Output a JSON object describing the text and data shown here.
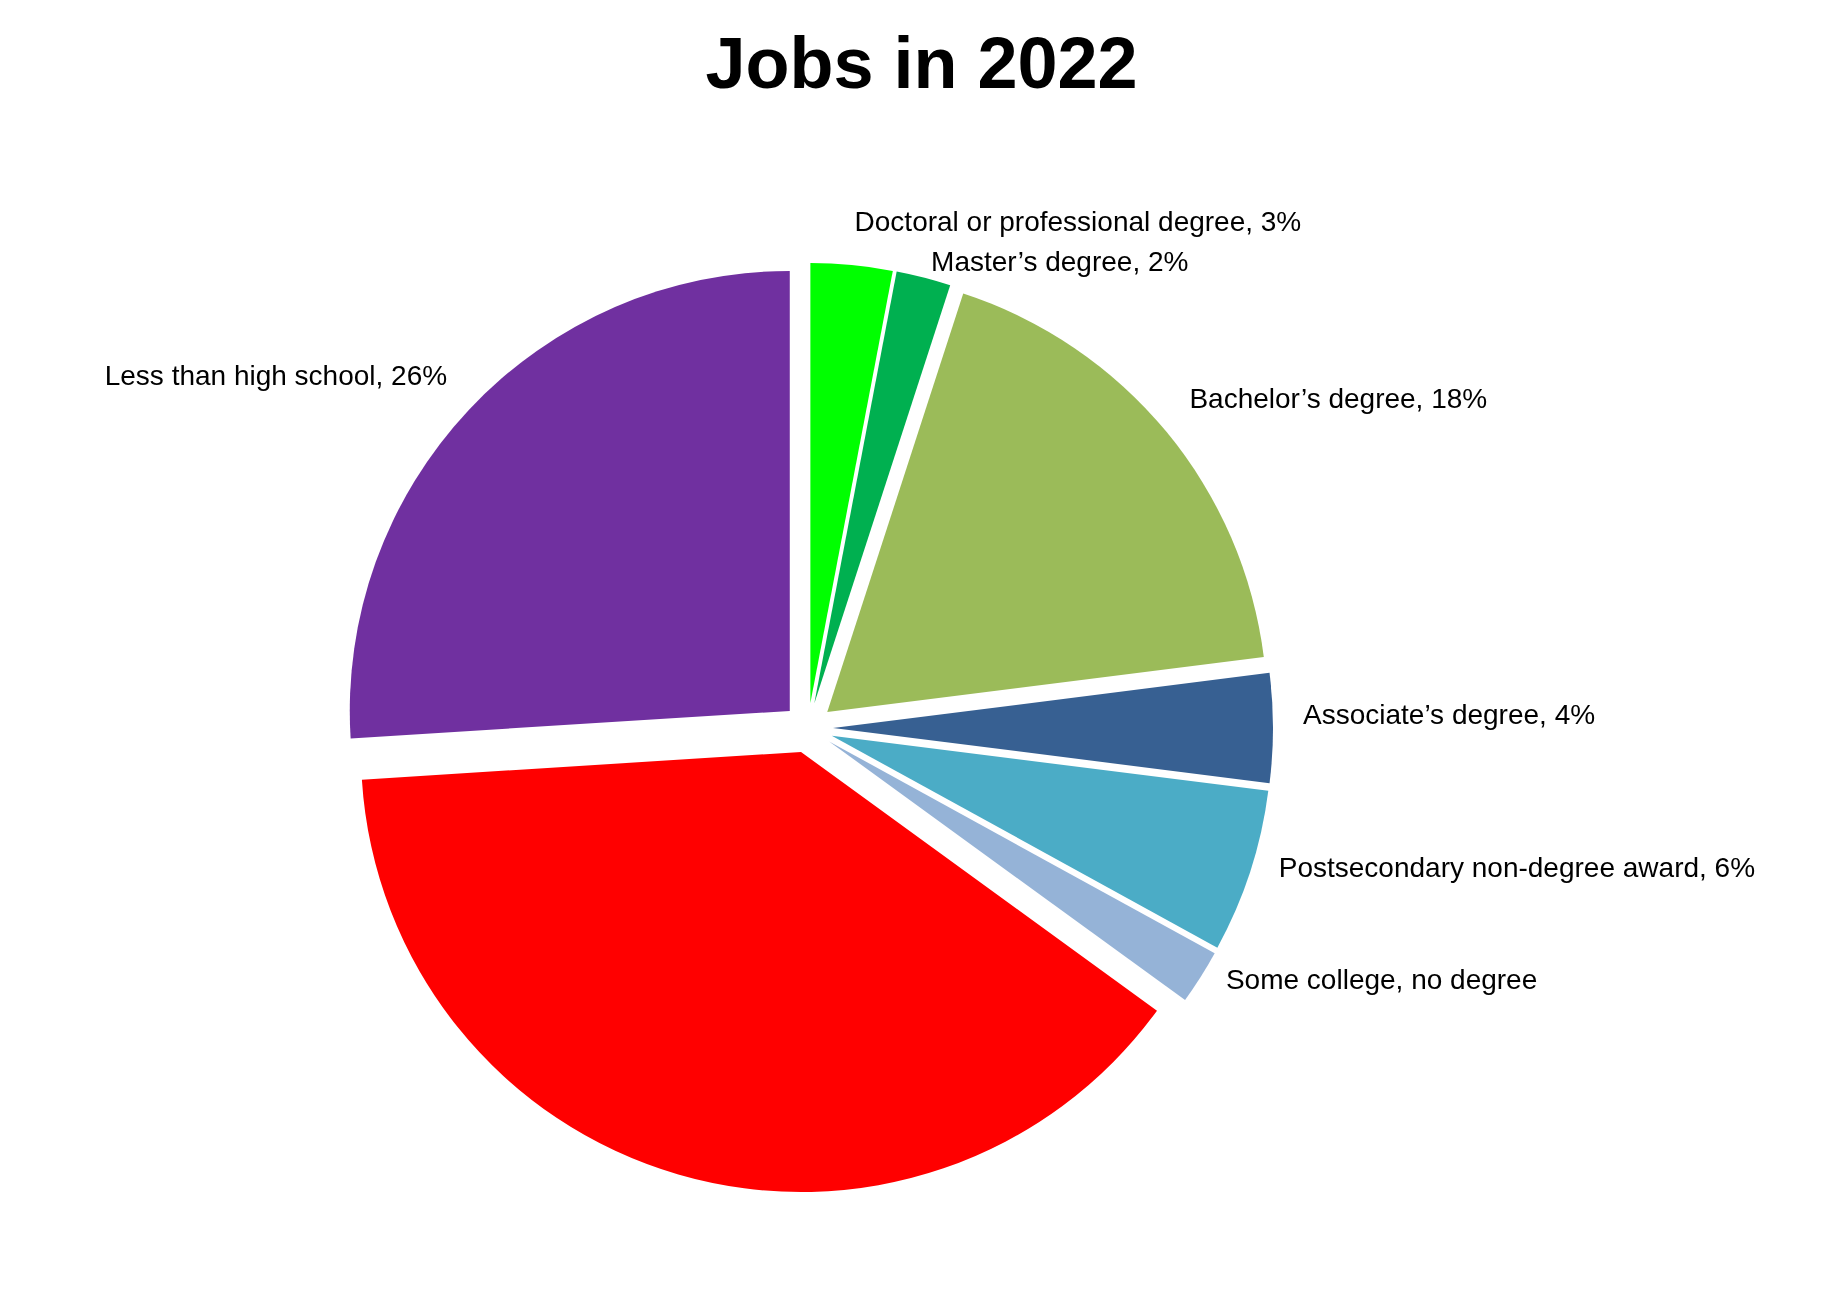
{
  "chart_data": {
    "type": "pie",
    "title": "Jobs in 2022",
    "categories": [
      "Doctoral or professional degree",
      "Master’s degree",
      "Bachelor’s degree",
      "Associate’s degree",
      "Postsecondary non-degree award",
      "Some college, no degree",
      null,
      "Less than high school"
    ],
    "values": [
      3,
      2,
      18,
      4,
      6,
      2,
      39,
      26
    ],
    "value_labels": [
      "3%",
      "2%",
      "18%",
      "4%",
      "6%",
      null,
      null,
      "26%"
    ],
    "colors": [
      "#00ff00",
      "#00b050",
      "#9bbb59",
      "#376092",
      "#4bacc6",
      "#95b3d7",
      "#ff0000",
      "#7030a0"
    ]
  }
}
